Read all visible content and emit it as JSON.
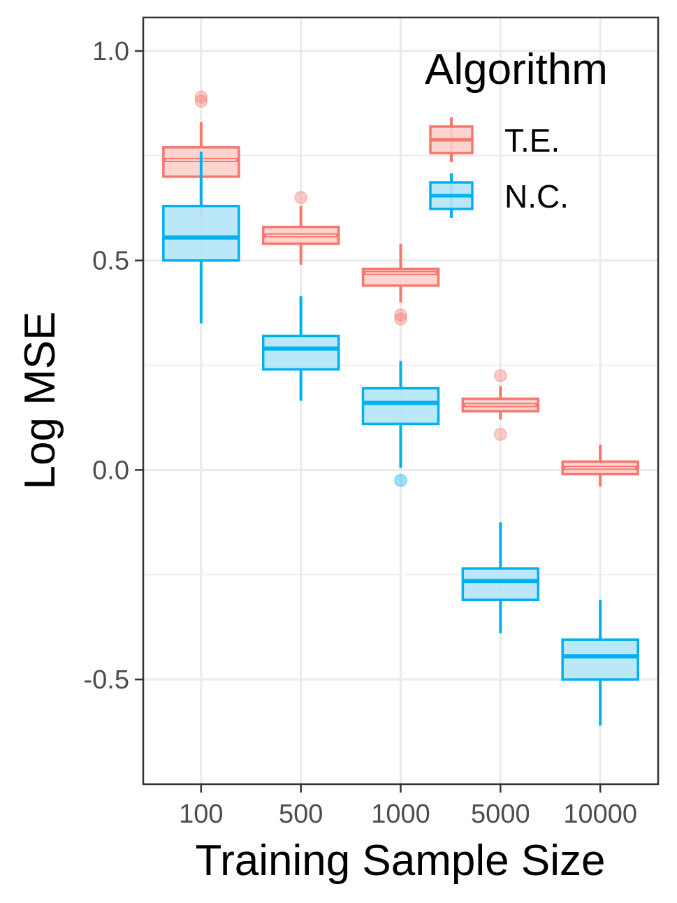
{
  "chart_data": {
    "type": "boxplot",
    "xlabel": "Training Sample Size",
    "ylabel": "Log MSE",
    "categories": [
      "100",
      "500",
      "1000",
      "5000",
      "10000"
    ],
    "ylim": [
      -0.75,
      1.08
    ],
    "yticks": [
      -0.5,
      0.0,
      0.5,
      1.0
    ],
    "ytick_labels": [
      "-0.5",
      "0.0",
      "0.5",
      "1.0"
    ],
    "grid": true,
    "legend": {
      "title": "Algorithm",
      "position": "top-right"
    },
    "series": [
      {
        "name": "T.E.",
        "color": "#F8766D",
        "fill": "#FCCFCB",
        "boxes": [
          {
            "category": "100",
            "whisker_low": 0.61,
            "q1": 0.7,
            "median": 0.74,
            "q3": 0.77,
            "whisker_high": 0.83,
            "outliers": [
              0.88,
              0.89
            ]
          },
          {
            "category": "500",
            "whisker_low": 0.49,
            "q1": 0.54,
            "median": 0.56,
            "q3": 0.58,
            "whisker_high": 0.63,
            "outliers": [
              0.65
            ]
          },
          {
            "category": "1000",
            "whisker_low": 0.4,
            "q1": 0.44,
            "median": 0.47,
            "q3": 0.48,
            "whisker_high": 0.54,
            "outliers": [
              0.37,
              0.36
            ]
          },
          {
            "category": "5000",
            "whisker_low": 0.12,
            "q1": 0.14,
            "median": 0.155,
            "q3": 0.17,
            "whisker_high": 0.2,
            "outliers": [
              0.225,
              0.085
            ]
          },
          {
            "category": "10000",
            "whisker_low": -0.04,
            "q1": -0.01,
            "median": 0.005,
            "q3": 0.02,
            "whisker_high": 0.06,
            "outliers": []
          }
        ]
      },
      {
        "name": "N.C.",
        "color": "#00B0F0",
        "fill": "#B3E5F8",
        "boxes": [
          {
            "category": "100",
            "whisker_low": 0.35,
            "q1": 0.5,
            "median": 0.555,
            "q3": 0.63,
            "whisker_high": 0.76,
            "outliers": []
          },
          {
            "category": "500",
            "whisker_low": 0.165,
            "q1": 0.24,
            "median": 0.29,
            "q3": 0.32,
            "whisker_high": 0.415,
            "outliers": []
          },
          {
            "category": "1000",
            "whisker_low": 0.005,
            "q1": 0.11,
            "median": 0.16,
            "q3": 0.195,
            "whisker_high": 0.26,
            "outliers": [
              -0.025
            ]
          },
          {
            "category": "5000",
            "whisker_low": -0.39,
            "q1": -0.31,
            "median": -0.265,
            "q3": -0.235,
            "whisker_high": -0.125,
            "outliers": []
          },
          {
            "category": "10000",
            "whisker_low": -0.61,
            "q1": -0.5,
            "median": -0.445,
            "q3": -0.405,
            "whisker_high": -0.31,
            "outliers": []
          }
        ]
      }
    ]
  }
}
